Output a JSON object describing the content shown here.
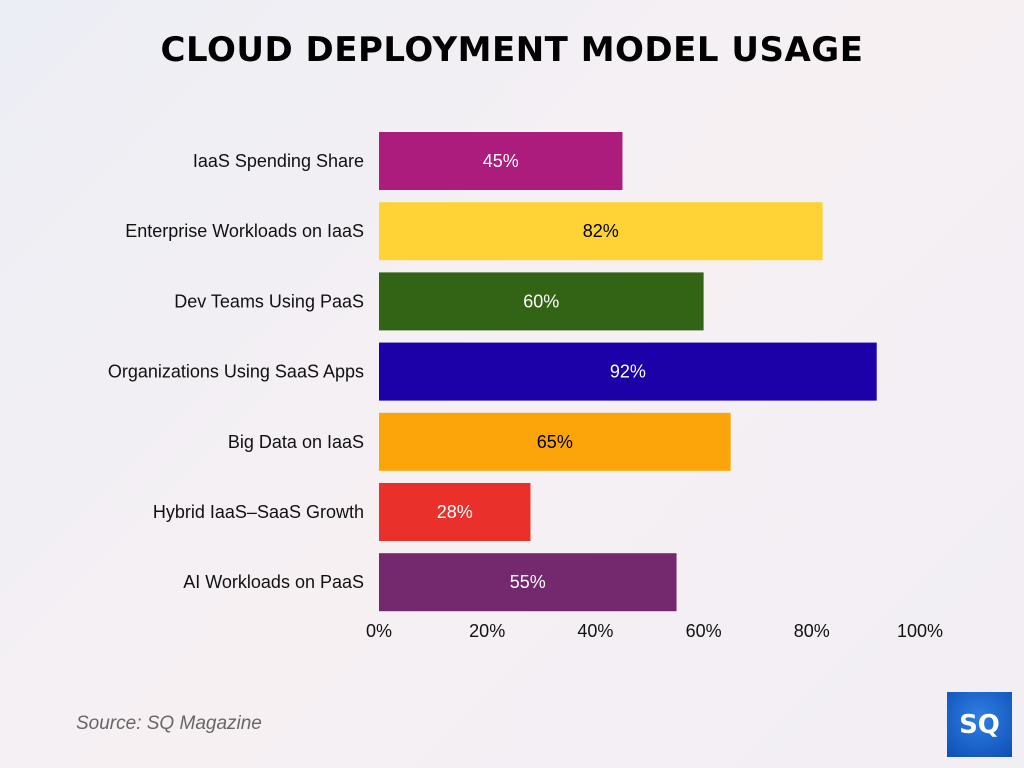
{
  "chart_data": {
    "type": "bar",
    "orientation": "horizontal",
    "title": "CLOUD DEPLOYMENT MODEL USAGE",
    "categories": [
      "IaaS Spending Share",
      "Enterprise Workloads on IaaS",
      "Dev Teams Using PaaS",
      "Organizations Using SaaS Apps",
      "Big Data on IaaS",
      "Hybrid IaaS–SaaS Growth",
      "AI Workloads on PaaS"
    ],
    "values": [
      45,
      82,
      60,
      92,
      65,
      28,
      55
    ],
    "data_labels": [
      "45%",
      "82%",
      "60%",
      "92%",
      "65%",
      "28%",
      "55%"
    ],
    "colors": [
      "#ab1c7c",
      "#ffd335",
      "#336314",
      "#1c00a8",
      "#fca50a",
      "#e9302a",
      "#74296f"
    ],
    "label_colors": [
      "#ffffff",
      "#000000",
      "#ffffff",
      "#ffffff",
      "#000000",
      "#ffffff",
      "#ffffff"
    ],
    "xlim": [
      0,
      100
    ],
    "xticks": [
      "0%",
      "20%",
      "40%",
      "60%",
      "80%",
      "100%"
    ],
    "xtick_values": [
      0,
      20,
      40,
      60,
      80,
      100
    ],
    "grid": false,
    "xlabel": "",
    "ylabel": ""
  },
  "source": "Source: SQ Magazine",
  "logo_text": "SQ"
}
